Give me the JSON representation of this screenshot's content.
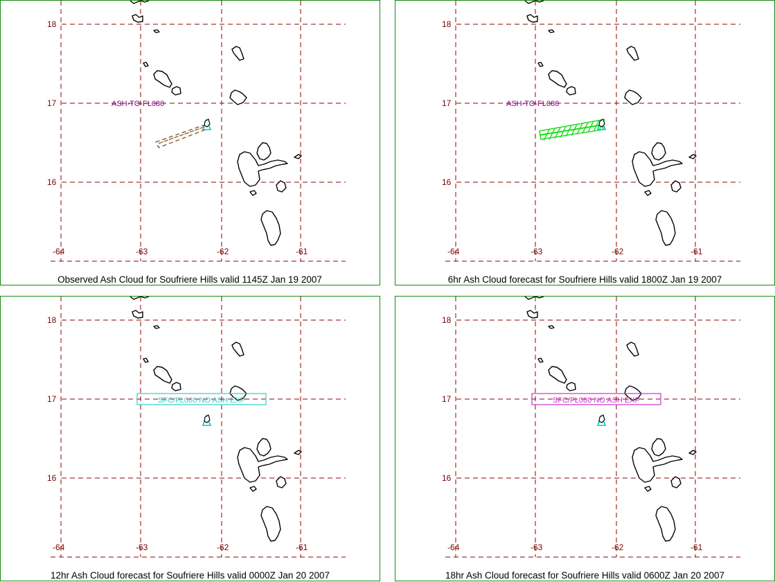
{
  "latitudes": [
    "18",
    "17",
    "16"
  ],
  "longitudes": [
    "-64",
    "-63",
    "-62",
    "-61"
  ],
  "colors": {
    "frame": "#138a13",
    "grid": "#8b0000",
    "label_text": "#7a0000",
    "observed_cloud": "#8b5a2b",
    "forecast6_cloud": "#22dd22",
    "annotation_purple": "#800080",
    "volcano_marker": "#00cccc",
    "box_cyan": "#33cccc",
    "box_magenta": "#cc33cc"
  },
  "panels": [
    {
      "caption": "Observed Ash Cloud for Soufriere  Hills valid 1145Z Jan 19 2007",
      "annotation": "ASH-TO-FL080",
      "annotation_style": "label",
      "ash_cloud": "observed"
    },
    {
      "caption": "6hr Ash Cloud forecast for Soufriere  Hills valid 1800Z Jan 19 2007",
      "annotation": "ASH-TO-FL080",
      "annotation_style": "label",
      "ash_cloud": "forecast"
    },
    {
      "caption": "12hr Ash Cloud forecast for Soufriere  Hills valid 0000Z Jan 20 2007",
      "annotation": "SFC/FL080  NO  ASH  EXP",
      "annotation_style": "box-cyan",
      "ash_cloud": "none"
    },
    {
      "caption": "18hr Ash Cloud forecast for Soufriere  Hills valid 0600Z Jan 20 2007",
      "annotation": "SFC/FL080  NO  ASH  EXP",
      "annotation_style": "box-magenta",
      "ash_cloud": "none"
    }
  ]
}
